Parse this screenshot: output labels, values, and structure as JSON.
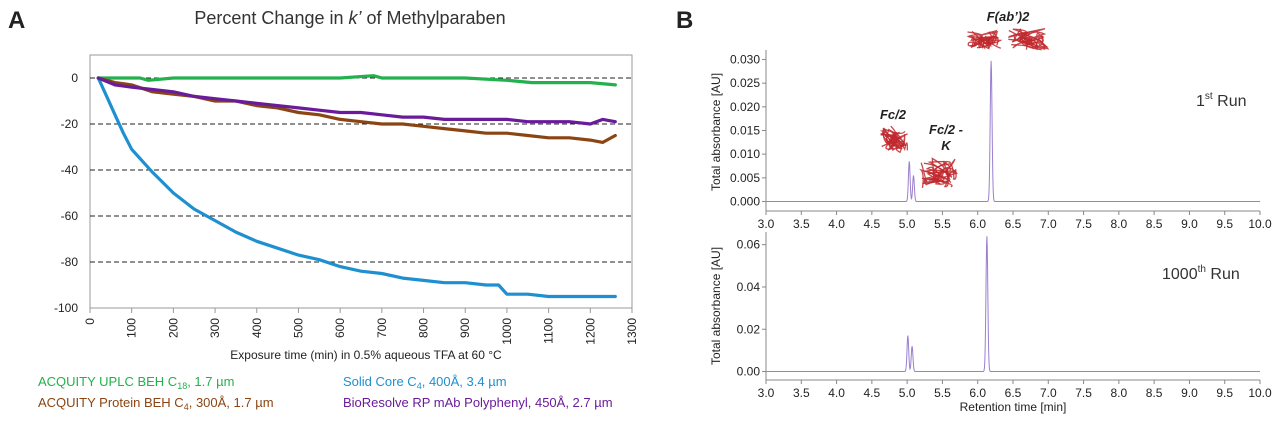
{
  "colors": {
    "green": "#22b14c",
    "blue": "#1e90d0",
    "brown": "#8b4513",
    "purple": "#6a1b9a",
    "chromatogram": "#9b7fcf",
    "protein": "#c0282d"
  },
  "panel_a": {
    "letter": "A",
    "title_prefix": "Percent Change in ",
    "title_italic": "k’",
    "title_suffix": " of Methylparaben",
    "xlabel": "Exposure time (min) in 0.5% aqueous TFA at 60 °C",
    "legend": [
      {
        "key": "green",
        "pre": "ACQUITY UPLC BEH C",
        "sub": "18",
        "post": ", 1.7 µm"
      },
      {
        "key": "blue",
        "pre": "Solid Core C",
        "sub": "4",
        "post": ", 400Å, 3.4 µm"
      },
      {
        "key": "brown",
        "pre": "ACQUITY Protein BEH C",
        "sub": "4",
        "post": ", 300Å, 1.7 µm"
      },
      {
        "key": "purple",
        "pre": "BioResolve RP mAb Polyphenyl, 450Å, 2.7 µm",
        "sub": "",
        "post": ""
      }
    ]
  },
  "panel_b": {
    "letter": "B",
    "ylabel": "Total absorbance [AU]",
    "xlabel": "Retention time [min]",
    "top_run_pre": "1",
    "top_run_sup": "st",
    "top_run_post": " Run",
    "bottom_run_pre": "1000",
    "bottom_run_sup": "th",
    "bottom_run_post": " Run",
    "ann_fab": "F(ab’)2",
    "ann_fc2": "Fc/2",
    "ann_fc2k_line1": "Fc/2 -",
    "ann_fc2k_line2": "K"
  },
  "chart_data": [
    {
      "type": "line",
      "title": "Percent Change in k’ of Methylparaben",
      "xlabel": "Exposure time (min) in 0.5% aqueous TFA at 60 °C",
      "ylabel": "",
      "xlim": [
        0,
        1300
      ],
      "ylim": [
        -100,
        10
      ],
      "xticks": [
        0,
        100,
        200,
        300,
        400,
        500,
        600,
        700,
        800,
        900,
        1000,
        1100,
        1200,
        1300
      ],
      "yticks": [
        0,
        -20,
        -40,
        -60,
        -80,
        -100
      ],
      "grid": "dashed horizontal at -20, -40, -60, -80",
      "series": [
        {
          "name": "ACQUITY UPLC BEH C18, 1.7 µm",
          "color_key": "green",
          "x": [
            20,
            120,
            140,
            200,
            400,
            600,
            680,
            700,
            900,
            1000,
            1060,
            1200,
            1260
          ],
          "y": [
            0,
            0,
            -1,
            0,
            0,
            0,
            1,
            0,
            0,
            -1,
            -2,
            -2,
            -3
          ]
        },
        {
          "name": "Solid Core C4, 400Å, 3.4 µm",
          "color_key": "blue",
          "x": [
            20,
            40,
            60,
            80,
            100,
            150,
            200,
            250,
            300,
            350,
            400,
            450,
            500,
            550,
            600,
            650,
            700,
            750,
            800,
            850,
            900,
            950,
            980,
            1000,
            1050,
            1100,
            1150,
            1200,
            1260
          ],
          "y": [
            0,
            -8,
            -16,
            -24,
            -31,
            -41,
            -50,
            -57,
            -62,
            -67,
            -71,
            -74,
            -77,
            -79,
            -82,
            -84,
            -85,
            -87,
            -88,
            -89,
            -89,
            -90,
            -90,
            -94,
            -94,
            -95,
            -95,
            -95,
            -95
          ]
        },
        {
          "name": "ACQUITY Protein BEH C4, 300Å, 1.7 µm",
          "color_key": "brown",
          "x": [
            20,
            60,
            100,
            150,
            200,
            250,
            300,
            350,
            400,
            450,
            500,
            550,
            600,
            650,
            700,
            750,
            800,
            850,
            900,
            950,
            1000,
            1050,
            1100,
            1150,
            1200,
            1230,
            1260
          ],
          "y": [
            0,
            -2,
            -3,
            -6,
            -7,
            -8,
            -10,
            -10,
            -12,
            -13,
            -15,
            -16,
            -18,
            -19,
            -20,
            -20,
            -21,
            -22,
            -23,
            -24,
            -24,
            -25,
            -26,
            -26,
            -27,
            -28,
            -25
          ]
        },
        {
          "name": "BioResolve RP mAb Polyphenyl, 450Å, 2.7 µm",
          "color_key": "purple",
          "x": [
            20,
            60,
            100,
            150,
            200,
            250,
            300,
            350,
            400,
            450,
            500,
            550,
            600,
            650,
            700,
            750,
            800,
            850,
            900,
            950,
            1000,
            1050,
            1100,
            1150,
            1200,
            1230,
            1260
          ],
          "y": [
            0,
            -3,
            -4,
            -5,
            -6,
            -8,
            -9,
            -10,
            -11,
            -12,
            -13,
            -14,
            -15,
            -15,
            -16,
            -17,
            -17,
            -18,
            -18,
            -18,
            -18,
            -19,
            -19,
            -19,
            -20,
            -18,
            -19
          ]
        }
      ]
    },
    {
      "type": "line",
      "title": "1st Run",
      "xlabel": "",
      "ylabel": "Total absorbance [AU]",
      "xlim": [
        3.0,
        10.0
      ],
      "ylim": [
        -0.002,
        0.032
      ],
      "xticks": [
        3.0,
        3.5,
        4.0,
        4.5,
        5.0,
        5.5,
        6.0,
        6.5,
        7.0,
        7.5,
        8.0,
        8.5,
        9.0,
        9.5,
        10.0
      ],
      "xtick_labels": [
        "3.0",
        "3.5",
        "4.0",
        "4.5",
        "5.0",
        "5.5",
        "6.0",
        "6.5",
        "7.0",
        "7.5",
        "8.0",
        "8.5",
        "9.0",
        "9.5",
        "10.0"
      ],
      "yticks": [
        0.0,
        0.005,
        0.01,
        0.015,
        0.02,
        0.025,
        0.03
      ],
      "ytick_labels": [
        "0.000",
        "0.005",
        "0.010",
        "0.015",
        "0.020",
        "0.025",
        "0.030"
      ],
      "baseline": 0.0,
      "peaks": [
        {
          "center": 5.03,
          "height": 0.0085,
          "width": 0.012
        },
        {
          "center": 5.09,
          "height": 0.0055,
          "width": 0.012
        },
        {
          "center": 6.19,
          "height": 0.0297,
          "width": 0.013
        }
      ]
    },
    {
      "type": "line",
      "title": "1000th Run",
      "xlabel": "Retention time [min]",
      "ylabel": "Total absorbance [AU]",
      "xlim": [
        3.0,
        10.0
      ],
      "ylim": [
        -0.004,
        0.066
      ],
      "xticks": [
        3.0,
        3.5,
        4.0,
        4.5,
        5.0,
        5.5,
        6.0,
        6.5,
        7.0,
        7.5,
        8.0,
        8.5,
        9.0,
        9.5,
        10.0
      ],
      "xtick_labels": [
        "3.0",
        "3.5",
        "4.0",
        "4.5",
        "5.0",
        "5.5",
        "6.0",
        "6.5",
        "7.0",
        "7.5",
        "8.0",
        "8.5",
        "9.0",
        "9.5",
        "10.0"
      ],
      "yticks": [
        0.0,
        0.02,
        0.04,
        0.06
      ],
      "ytick_labels": [
        "0.00",
        "0.02",
        "0.04",
        "0.06"
      ],
      "baseline": 0.0,
      "peaks": [
        {
          "center": 5.01,
          "height": 0.017,
          "width": 0.012
        },
        {
          "center": 5.07,
          "height": 0.012,
          "width": 0.012
        },
        {
          "center": 6.13,
          "height": 0.064,
          "width": 0.013
        }
      ]
    }
  ]
}
